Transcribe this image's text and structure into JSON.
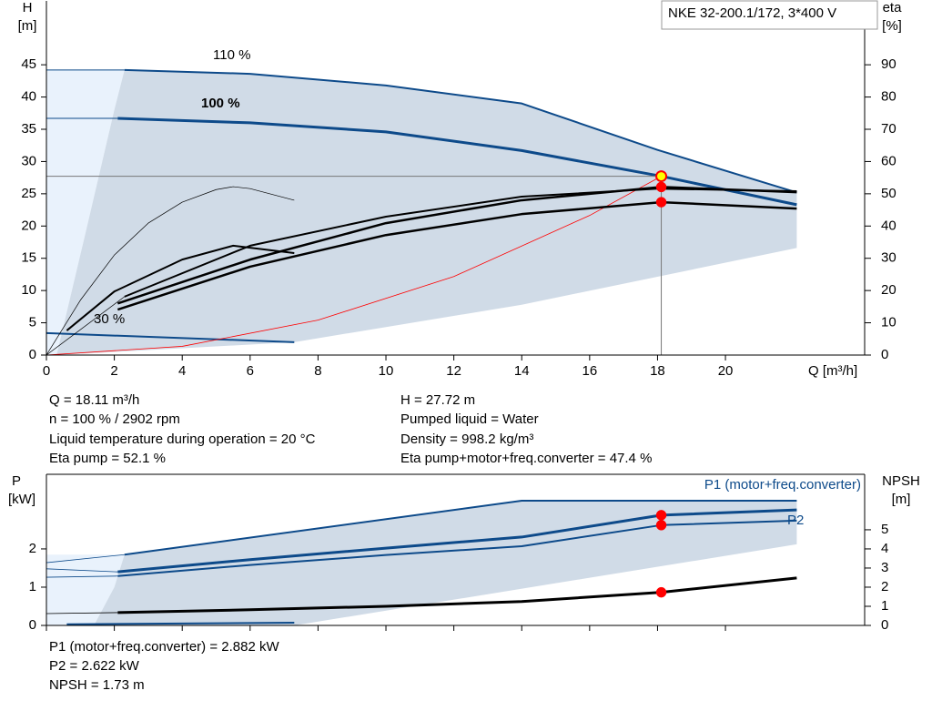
{
  "header": "NKE 32-200.1/172, 3*400 V",
  "info_top": {
    "left": [
      "Q = 18.11 m³/h",
      "n = 100 % / 2902 rpm",
      "Liquid temperature during operation = 20 °C",
      "Eta pump = 52.1 %"
    ],
    "right": [
      "H = 27.72 m",
      "Pumped liquid = Water",
      "Density = 998.2 kg/m³",
      "Eta pump+motor+freq.converter = 47.4 %"
    ]
  },
  "info_bottom": [
    "P1 (motor+freq.converter) = 2.882 kW",
    "P2 = 2.622 kW",
    "NPSH = 1.73 m"
  ],
  "chart_data": [
    {
      "type": "line",
      "ylabel": "H",
      "yunit": "[m]",
      "y2label": "eta",
      "y2unit": "[%]",
      "xlabel": "Q [m³/h]",
      "labels": [
        "110 %",
        "100 %",
        "30 %"
      ],
      "xlim": [
        0,
        24.1
      ],
      "ylim": [
        0,
        54.9
      ],
      "y2lim": [
        0,
        109.8
      ],
      "xticks": [
        0,
        2,
        4,
        6,
        8,
        10,
        12,
        14,
        16,
        18,
        20
      ],
      "yticks": [
        0,
        5,
        10,
        15,
        20,
        25,
        30,
        35,
        40,
        45
      ],
      "y2ticks": [
        0,
        10,
        20,
        30,
        40,
        50,
        60,
        70,
        80,
        90
      ],
      "xtick_labels": true,
      "regions": [
        {
          "color": "#e9f2fc",
          "x": [
            0,
            0,
            2.3,
            2.0,
            1.2,
            0.3
          ],
          "y": [
            0,
            44.2,
            44.2,
            38,
            20,
            0
          ]
        },
        {
          "color": "#d0dbe7",
          "x": [
            0.3,
            1.2,
            2.0,
            2.3,
            6,
            10,
            14,
            18,
            22.1,
            22.1,
            14,
            7.3
          ],
          "y": [
            0,
            20,
            38,
            44.2,
            43.6,
            41.8,
            39.0,
            31.8,
            25.2,
            16.6,
            7.8,
            2.0
          ]
        }
      ],
      "series": [
        {
          "color": "#0d4a8a",
          "width": 1,
          "x": [
            0,
            2.3
          ],
          "values": [
            44.2,
            44.2
          ]
        },
        {
          "color": "#0d4a8a",
          "width": 2,
          "x": [
            2.3,
            6,
            10,
            14,
            18,
            22.1
          ],
          "values": [
            44.2,
            43.6,
            41.8,
            39.0,
            31.8,
            25.2
          ]
        },
        {
          "color": "#0d4a8a",
          "width": 1,
          "x": [
            0,
            2.1
          ],
          "values": [
            36.7,
            36.7
          ]
        },
        {
          "color": "#0d4a8a",
          "width": 3,
          "x": [
            2.1,
            6,
            10,
            14,
            18.11,
            22.1
          ],
          "values": [
            36.7,
            36.0,
            34.6,
            31.7,
            27.72,
            23.3
          ]
        },
        {
          "color": "#0d4a8a",
          "width": 2,
          "x": [
            0,
            7.3
          ],
          "values": [
            3.4,
            2.0
          ]
        },
        {
          "color": "#ff0000",
          "width": 0.8,
          "x": [
            0,
            4,
            8,
            12,
            16,
            18.11
          ],
          "values": [
            0,
            1.35,
            5.41,
            12.17,
            21.64,
            27.72
          ]
        },
        {
          "color": "#000000",
          "width": 0.7,
          "axis": "y2",
          "x": [
            0,
            1,
            2,
            3,
            4,
            5,
            5.5,
            6,
            7.3
          ],
          "values": [
            0,
            17,
            31,
            40.9,
            47.4,
            51.3,
            52.2,
            51.6,
            48
          ]
        },
        {
          "color": "#000000",
          "width": 2,
          "axis": "y2",
          "x": [
            0.6,
            2,
            4,
            5.5,
            7.3
          ],
          "values": [
            7.6,
            19.7,
            29.6,
            33.9,
            31.6
          ]
        },
        {
          "color": "#000000",
          "width": 0.7,
          "axis": "y2",
          "x": [
            0,
            2.3
          ],
          "values": [
            0,
            18.1
          ]
        },
        {
          "color": "#000000",
          "width": 2,
          "axis": "y2",
          "x": [
            2.3,
            6,
            10,
            14,
            18,
            22.1
          ],
          "values": [
            18.1,
            33.9,
            42.9,
            49.1,
            51.6,
            50.8
          ]
        },
        {
          "color": "#000000",
          "width": 2.5,
          "axis": "y2",
          "x": [
            2.1,
            6,
            10,
            14,
            18.11,
            22.1
          ],
          "values": [
            16,
            29.6,
            40.9,
            48,
            52.1,
            50.5
          ]
        },
        {
          "color": "#000000",
          "width": 2.5,
          "axis": "y2",
          "x": [
            2.1,
            6,
            10,
            14,
            18.11,
            22.1
          ],
          "values": [
            14.1,
            27.4,
            37.2,
            43.7,
            47.4,
            45.4
          ]
        }
      ],
      "points": [
        {
          "x": 18.11,
          "y": 52.1,
          "axis": "y2",
          "color": "#ff0000"
        },
        {
          "x": 18.11,
          "y": 47.4,
          "axis": "y2",
          "color": "#ff0000"
        },
        {
          "x": 18.11,
          "y": 27.72,
          "color": "#ffff00",
          "guide": true
        }
      ]
    },
    {
      "type": "line",
      "ylabel": "P",
      "yunit": "[kW]",
      "y2label": "NPSH",
      "y2unit": "[m]",
      "labels": [
        "P1 (motor+freq.converter)",
        "P2"
      ],
      "xlim": [
        0,
        24.1
      ],
      "ylim": [
        0,
        3.95
      ],
      "y2lim": [
        0,
        7.9
      ],
      "xticks": [
        0,
        2,
        4,
        6,
        8,
        10,
        12,
        14,
        16,
        18,
        20
      ],
      "yticks": [
        0,
        1,
        2
      ],
      "y2ticks": [
        0,
        1,
        2,
        3,
        4,
        5
      ],
      "xtick_labels": false,
      "regions": [
        {
          "color": "#e9f2fc",
          "x": [
            0,
            0,
            2.3,
            2.0,
            1.4
          ],
          "y": [
            0,
            1.85,
            1.85,
            1.0,
            0
          ]
        },
        {
          "color": "#d0dbe7",
          "x": [
            1.4,
            2.0,
            2.3,
            14,
            22.1,
            22.1,
            7.3
          ],
          "y": [
            0,
            1.0,
            1.85,
            3.26,
            3.26,
            2.12,
            0
          ]
        }
      ],
      "series": [
        {
          "color": "#0d4a8a",
          "width": 0.8,
          "x": [
            0,
            2.3
          ],
          "values": [
            1.64,
            1.85
          ]
        },
        {
          "color": "#0d4a8a",
          "width": 2,
          "x": [
            2.3,
            14,
            22.1
          ],
          "values": [
            1.85,
            3.26,
            3.26
          ]
        },
        {
          "color": "#0d4a8a",
          "width": 0.8,
          "x": [
            0,
            2.1
          ],
          "values": [
            1.48,
            1.4
          ]
        },
        {
          "color": "#0d4a8a",
          "width": 3,
          "x": [
            2.1,
            6,
            10,
            14,
            18.11,
            22.1
          ],
          "values": [
            1.4,
            1.72,
            2.02,
            2.31,
            2.882,
            3.02
          ]
        },
        {
          "color": "#0d4a8a",
          "width": 0.8,
          "x": [
            0,
            2.1
          ],
          "values": [
            1.26,
            1.29
          ]
        },
        {
          "color": "#0d4a8a",
          "width": 2,
          "x": [
            2.1,
            6,
            10,
            14,
            18.11,
            22.1
          ],
          "values": [
            1.29,
            1.58,
            1.84,
            2.07,
            2.622,
            2.74
          ]
        },
        {
          "color": "#0d4a8a",
          "width": 2,
          "x": [
            0.6,
            7.3
          ],
          "values": [
            0.03,
            0.07
          ]
        },
        {
          "color": "#000000",
          "width": 0.8,
          "axis": "y2",
          "x": [
            0,
            2.1
          ],
          "values": [
            0.62,
            0.67
          ]
        },
        {
          "color": "#000000",
          "width": 3,
          "axis": "y2",
          "x": [
            2.1,
            6,
            10,
            14,
            18.11,
            22.1
          ],
          "values": [
            0.67,
            0.82,
            1.0,
            1.25,
            1.73,
            2.48
          ]
        }
      ],
      "points": [
        {
          "x": 18.11,
          "y": 2.882,
          "color": "#ff0000"
        },
        {
          "x": 18.11,
          "y": 2.622,
          "color": "#ff0000"
        },
        {
          "x": 18.11,
          "y": 1.73,
          "axis": "y2",
          "color": "#ff0000"
        }
      ]
    }
  ]
}
